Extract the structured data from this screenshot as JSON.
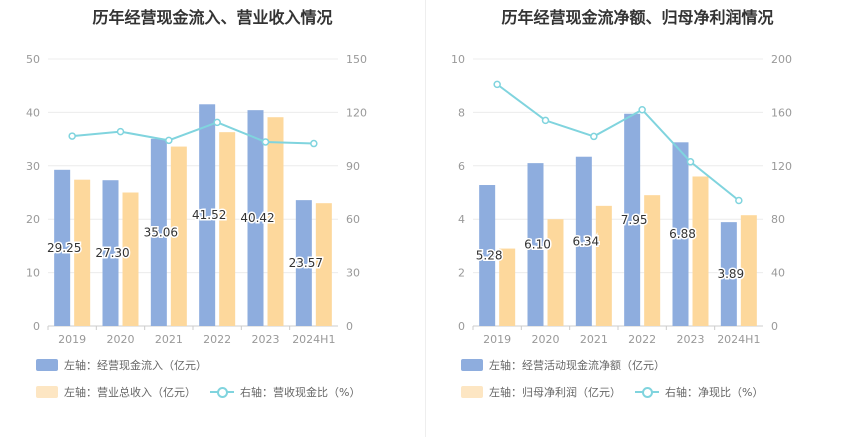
{
  "colors": {
    "bar1": "#8eadde",
    "bar2": "#fdd89c",
    "line": "#80d4de",
    "axis_text": "#999999",
    "grid": "#ececec",
    "label": "#333333"
  },
  "charts": [
    {
      "title": "历年经营现金流入、营业收入情况",
      "legend": {
        "bar1": "左轴：经营现金流入（亿元）",
        "bar2": "左轴：营业总收入（亿元）",
        "line": "右轴：营收现金比（%）"
      }
    },
    {
      "title": "历年经营现金流净额、归母净利润情况",
      "legend": {
        "bar1": "左轴：经营活动现金流净额（亿元）",
        "bar2": "左轴：归母净利润（亿元）",
        "line": "右轴：净现比（%）"
      }
    }
  ],
  "chart_data": [
    {
      "type": "bar",
      "title": "历年经营现金流入、营业收入情况",
      "categories": [
        "2019",
        "2020",
        "2021",
        "2022",
        "2023",
        "2024H1"
      ],
      "left_axis": {
        "ylim": [
          0,
          50
        ],
        "ticks": [
          0,
          10,
          20,
          30,
          40,
          50
        ]
      },
      "right_axis": {
        "ylim": [
          0,
          150
        ],
        "ticks": [
          0,
          30,
          60,
          90,
          120,
          150
        ]
      },
      "series": [
        {
          "name": "左轴：经营现金流入（亿元）",
          "type": "bar",
          "axis": "left",
          "values": [
            29.25,
            27.3,
            35.06,
            41.52,
            40.42,
            23.57
          ],
          "labels": [
            "29.25",
            "27.30",
            "35.06",
            "41.52",
            "40.42",
            "23.57"
          ]
        },
        {
          "name": "左轴：营业总收入（亿元）",
          "type": "bar",
          "axis": "left",
          "values": [
            27.4,
            25.0,
            33.6,
            36.3,
            39.1,
            23.0
          ]
        },
        {
          "name": "右轴：营收现金比（%）",
          "type": "line",
          "axis": "right",
          "values": [
            106.7,
            109.2,
            104.3,
            114.4,
            103.4,
            102.5
          ]
        }
      ],
      "legend_position": "bottom",
      "grid": true
    },
    {
      "type": "bar",
      "title": "历年经营现金流净额、归母净利润情况",
      "categories": [
        "2019",
        "2020",
        "2021",
        "2022",
        "2023",
        "2024H1"
      ],
      "left_axis": {
        "ylim": [
          0,
          10
        ],
        "ticks": [
          0,
          2,
          4,
          6,
          8,
          10
        ]
      },
      "right_axis": {
        "ylim": [
          0,
          200
        ],
        "ticks": [
          0,
          40,
          80,
          120,
          160,
          200
        ]
      },
      "series": [
        {
          "name": "左轴：经营活动现金流净额（亿元）",
          "type": "bar",
          "axis": "left",
          "values": [
            5.28,
            6.1,
            6.34,
            7.95,
            6.88,
            3.89
          ],
          "labels": [
            "5.28",
            "6.10",
            "6.34",
            "7.95",
            "6.88",
            "3.89"
          ]
        },
        {
          "name": "左轴：归母净利润（亿元）",
          "type": "bar",
          "axis": "left",
          "values": [
            2.9,
            4.0,
            4.5,
            4.9,
            5.6,
            4.15
          ]
        },
        {
          "name": "右轴：净现比（%）",
          "type": "line",
          "axis": "right",
          "values": [
            181.0,
            154.0,
            142.0,
            162.0,
            123.0,
            94.0
          ]
        }
      ],
      "legend_position": "bottom",
      "grid": true
    }
  ]
}
